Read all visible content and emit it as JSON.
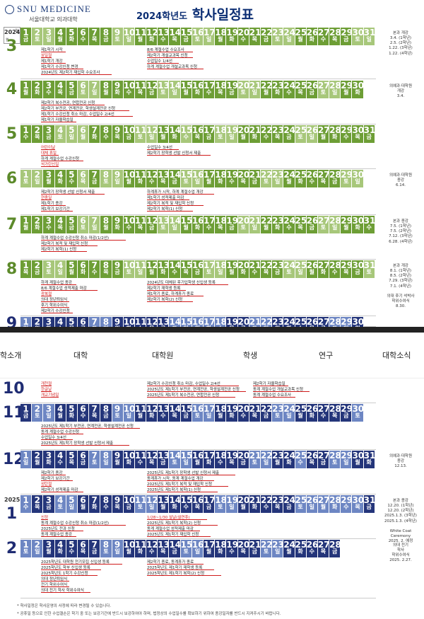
{
  "header": {
    "logo_text": "SNU MEDICINE",
    "logo_sub": "서울대학교 의과대학",
    "title_year": "2024학년도",
    "title_main": "학사일정표",
    "corner_top": "일",
    "corner_bottom": "월"
  },
  "nav": {
    "items": [
      "학소개",
      "대학",
      "대학원",
      "학생",
      "연구",
      "대학소식"
    ]
  },
  "colors": {
    "green": "#6d9e35",
    "green_light": "#a7c77a",
    "navy": "#24357a",
    "navy_light": "#6d86c3",
    "red": "#d01c1c"
  },
  "months": [
    {
      "num": "3",
      "year": "2024",
      "theme": "green",
      "start": 1,
      "days": 31,
      "first_weekday": 5,
      "light": [
        2,
        3,
        9,
        10,
        16,
        17,
        23,
        24,
        30,
        31
      ],
      "events": [
        {
          "t": "제1학기 시작",
          "red": false
        },
        {
          "t": "삼일절",
          "red": true
        },
        {
          "t": "제1학기 개강",
          "red": false
        },
        {
          "t": "제1학기 수강신청 변경",
          "red": false
        },
        {
          "t": "2024년도 제2학기 재입학 수요조사",
          "red": false
        },
        {
          "t": "8/6 계절수업 수요조사",
          "red": false
        },
        {
          "t": "제2학기 개설교과목 신청",
          "red": false
        },
        {
          "t": "수업일수 1/4선",
          "red": false
        },
        {
          "t": "하계 계절수업 개설교과목 신청",
          "red": false
        }
      ],
      "side": "본과 개강\n3.4. (1학년)\n2.5. (2학년)\n1.22. (3학년)\n1.22. (4학년)"
    },
    {
      "num": "4",
      "theme": "green",
      "start": 1,
      "days": 30,
      "first_weekday": 1,
      "light": [
        6,
        7,
        13,
        14,
        20,
        21,
        27,
        28
      ],
      "events": [
        {
          "t": "제2학기 복수전공, 연합전공 신청",
          "red": false
        },
        {
          "t": "제2학기 부전공, 연계전공, 학생설계전공 신청",
          "red": false
        },
        {
          "t": "제1학기 수강신청 취소 마감, 수업일수 2/4선",
          "red": false
        },
        {
          "t": "제1학기 자율학습일",
          "red": false
        }
      ],
      "side": "의예과·대학원\n개강\n3.4."
    },
    {
      "num": "5",
      "theme": "green",
      "start": 1,
      "days": 31,
      "first_weekday": 3,
      "light": [
        4,
        5,
        6,
        11,
        12,
        15,
        18,
        19,
        25,
        26
      ],
      "events": [
        {
          "t": "어린이날",
          "red": true
        },
        {
          "t": "대체 휴일",
          "red": true
        },
        {
          "t": "하계 계절수업 수강신청",
          "red": false
        },
        {
          "t": "석가탄신일",
          "red": true
        },
        {
          "t": "수업일수 3/4선",
          "red": false
        },
        {
          "t": "제2학기 장학생 선발 신청서 제출",
          "red": false
        }
      ],
      "side": ""
    },
    {
      "num": "6",
      "theme": "green",
      "start": 1,
      "days": 30,
      "first_weekday": 6,
      "light": [
        1,
        2,
        6,
        8,
        9,
        15,
        16,
        22,
        23,
        29,
        30
      ],
      "events": [
        {
          "t": "제2학기 장학생 선발 신청서 제출",
          "red": false
        },
        {
          "t": "현충일",
          "red": true
        },
        {
          "t": "제1학기 종강",
          "red": false
        },
        {
          "t": "제1학기 보강기간",
          "red": false
        },
        {
          "t": "하계휴가 시작, 하계 계절수업 개강",
          "red": false
        },
        {
          "t": "제1학기 성적제출 마감",
          "red": false
        },
        {
          "t": "제2학기 복적 및 재입학 신청",
          "red": false
        },
        {
          "t": "제2학기 복학(1) 신청",
          "red": false
        }
      ],
      "side": "의예과·대학원\n종강\n6.14."
    },
    {
      "num": "7",
      "theme": "green",
      "start": 1,
      "days": 31,
      "first_weekday": 1,
      "light": [
        6,
        7,
        13,
        14,
        20,
        21,
        27,
        28
      ],
      "events": [
        {
          "t": "하계 계절수업 수강신청 취소 마감(1/2선)",
          "red": false
        },
        {
          "t": "제2학기 복적 및 재입학 신청",
          "red": false
        },
        {
          "t": "제2학기 복학(1) 신청",
          "red": false
        }
      ],
      "side": "본과 종강\n7.5. (1학년)\n7.5. (2학년)\n7.12. (3학년)\n6.28. (4학년)"
    },
    {
      "num": "8",
      "theme": "green",
      "start": 1,
      "days": 31,
      "first_weekday": 4,
      "light": [
        3,
        4,
        10,
        11,
        17,
        18,
        24,
        25,
        31
      ],
      "events": [
        {
          "t": "하계 계절수업 종강",
          "red": false
        },
        {
          "t": "8/6 계절수업 성적제출 마감",
          "red": false
        },
        {
          "t": "광복절",
          "red": true
        },
        {
          "t": "의대 정년퇴임식",
          "red": false
        },
        {
          "t": "후기 학위수여식",
          "red": false
        },
        {
          "t": "제2학기 수강신청",
          "red": false
        },
        {
          "t": "2024년도 대체된 후기입학생 신입생 등록",
          "red": false
        },
        {
          "t": "제2학기 재학생 등록",
          "red": false
        },
        {
          "t": "제1학기 종료, 하계휴가 종료",
          "red": false
        },
        {
          "t": "제2학기 복학(2) 신청",
          "red": false
        }
      ],
      "side": "본과 개강\n8.1. (1학년)\n8.5. (2학년)\n7.29. (3학년)\n7.1. (4학년)\n\n의대 후기 석박사\n학위수여식\n8.30."
    },
    {
      "num": "9",
      "theme": "navy",
      "start": 1,
      "days": 30,
      "first_weekday": 0,
      "light": [
        1,
        7,
        8,
        14,
        15,
        16,
        17,
        18,
        21,
        22,
        28,
        29
      ],
      "events": [],
      "side": ""
    },
    {
      "num": "10",
      "theme": "navy",
      "events": [
        {
          "t": "개천절",
          "red": true
        },
        {
          "t": "한글날",
          "red": true
        },
        {
          "t": "개교기념일",
          "red": true
        },
        {
          "t": "제2학기 수강신청 취소 마감, 수업일수 2/4선",
          "red": false
        },
        {
          "t": "2025년도 제1학기 부전공, 연계전공, 학생설계전공 신청",
          "red": false
        },
        {
          "t": "2025년도 제1학기 복수전공, 연합전공 신청",
          "red": false
        },
        {
          "t": "제2학기 자율학습일",
          "red": false
        },
        {
          "t": "동계 계절수업 개설교과목 신청",
          "red": false
        },
        {
          "t": "동계 계절수업 수요조사",
          "red": false
        }
      ],
      "side": ""
    },
    {
      "num": "11",
      "theme": "navy",
      "start": 1,
      "days": 30,
      "first_weekday": 5,
      "light": [
        2,
        3,
        9,
        10,
        16,
        17,
        23,
        24,
        30
      ],
      "events": [
        {
          "t": "2025년도 제1학기 부전공, 연계전공, 학생설계전공 신청",
          "red": false
        },
        {
          "t": "동계 계절수업 수강신청",
          "red": false
        },
        {
          "t": "수업일수 3/4선",
          "red": false
        },
        {
          "t": "2025년도 제1학기 장학생 선발 신청서 제출",
          "red": false
        }
      ],
      "side": ""
    },
    {
      "num": "12",
      "theme": "navy",
      "start": 1,
      "days": 31,
      "first_weekday": 0,
      "light": [
        1,
        7,
        8,
        14,
        15,
        21,
        22,
        25,
        28,
        29
      ],
      "events": [
        {
          "t": "제2학기 종강",
          "red": false
        },
        {
          "t": "제2학기 보강기간",
          "red": false
        },
        {
          "t": "성탄절",
          "red": true
        },
        {
          "t": "제2학기 성적제출 마감",
          "red": false
        },
        {
          "t": "2025년도 제1학기 장학생 선발 신청서 제출",
          "red": false
        },
        {
          "t": "동계휴가 시작, 동계 계절수업 개강",
          "red": false
        },
        {
          "t": "2025년도 제1학기 복적 및 재입학 신청",
          "red": false
        },
        {
          "t": "2025년도 제1학기 복학(1) 신청",
          "red": false
        }
      ],
      "side": "의예과·대학원\n종강\n12.13."
    },
    {
      "num": "1",
      "year": "2025",
      "theme": "navy",
      "start": 1,
      "days": 31,
      "first_weekday": 3,
      "light": [
        1,
        4,
        5,
        11,
        12,
        18,
        19,
        25,
        26,
        27,
        28,
        29,
        30
      ],
      "events": [
        {
          "t": "신정",
          "red": true
        },
        {
          "t": "동계 계절수업 수강신청 취소 마감(1/2선)",
          "red": false
        },
        {
          "t": "2025년도 전과 신청",
          "red": false
        },
        {
          "t": "동계 계절수업 종강",
          "red": false
        },
        {
          "t": "1/28~1/30 설날(설연휴)",
          "red": true
        },
        {
          "t": "2025년도 제1학기 복학(2) 신청",
          "red": false
        },
        {
          "t": "동계 계절수업 성적제출 마감",
          "red": false
        },
        {
          "t": "2025년도 제1학기 재입학 신청",
          "red": false
        }
      ],
      "side": "본과 종강\n12.20. (1학년)\n12.20. (2학년)\n2025.1.3. (3학년)\n2025.1.3. (4학년)\n\nWhite Coat\nCeremony\n2025. 2. 예정"
    },
    {
      "num": "2",
      "theme": "navy",
      "start": 1,
      "days": 28,
      "first_weekday": 6,
      "light": [
        1,
        2,
        8,
        9,
        15,
        16,
        22,
        23
      ],
      "events": [
        {
          "t": "2025학년도 대학원 전기모집 신입생 등록",
          "red": false
        },
        {
          "t": "2025학년도 학부 신입생 등록",
          "red": false
        },
        {
          "t": "2025학년도 1학기 수강신청",
          "red": false
        },
        {
          "t": "의대 정년퇴임식",
          "red": false
        },
        {
          "t": "전기 학위수여식",
          "red": false
        },
        {
          "t": "의대 전기 학사 학위수여식",
          "red": false
        },
        {
          "t": "제2학기 종료, 동계휴가 종료",
          "red": false
        },
        {
          "t": "2025학년도 제1학기 재학생 등록",
          "red": false
        },
        {
          "t": "2025학년도 제1학기 복학(2) 신청",
          "red": false
        }
      ],
      "side": "의대 전기\n학사\n학위수여식\n2025. 2.27."
    }
  ],
  "weekdays": [
    "일",
    "월",
    "화",
    "수",
    "목",
    "금",
    "토"
  ],
  "footnotes": [
    "* 학사일정은 학사운영의 사정에 따라 변경될 수 있습니다.",
    "* 공휴일 등으로 인한 수업결손은 학기 중 또는 보강기간에 반드시 보강하여야 하며, 법정상의 수업일수를 확보하기 위하여 종강일자를 반드시 지켜주시기 바랍니다."
  ]
}
